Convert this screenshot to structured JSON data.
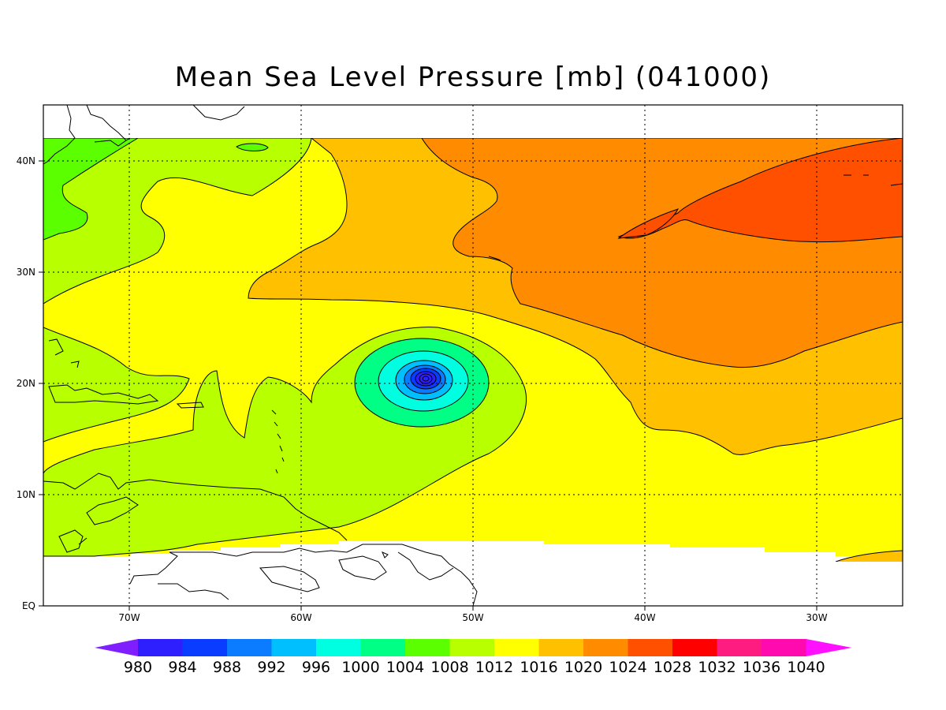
{
  "title": "Mean Sea Level Pressure [mb] (041000)",
  "axes": {
    "x_ticks": [
      "70W",
      "60W",
      "50W",
      "40W",
      "30W"
    ],
    "y_ticks": [
      "EQ",
      "10N",
      "20N",
      "30N",
      "40N"
    ]
  },
  "map": {
    "lon_range": [
      -75,
      -25
    ],
    "lat_range": [
      0,
      45
    ],
    "data_lat_range": [
      5,
      42
    ],
    "low_center": {
      "lon": -52.5,
      "lat": 20.3
    }
  },
  "colorbar": {
    "levels": [
      "980",
      "984",
      "988",
      "992",
      "996",
      "1000",
      "1004",
      "1008",
      "1012",
      "1016",
      "1020",
      "1024",
      "1028",
      "1032",
      "1036",
      "1040"
    ],
    "colors": [
      "#7f1fff",
      "#2e1fff",
      "#0a3cff",
      "#0b7cff",
      "#00bfff",
      "#00ffe0",
      "#00ff85",
      "#5cff00",
      "#b8ff00",
      "#ffff00",
      "#ffc000",
      "#ff8c00",
      "#ff5000",
      "#ff0000",
      "#ff1c80",
      "#ff0aae",
      "#ff10ff"
    ]
  }
}
